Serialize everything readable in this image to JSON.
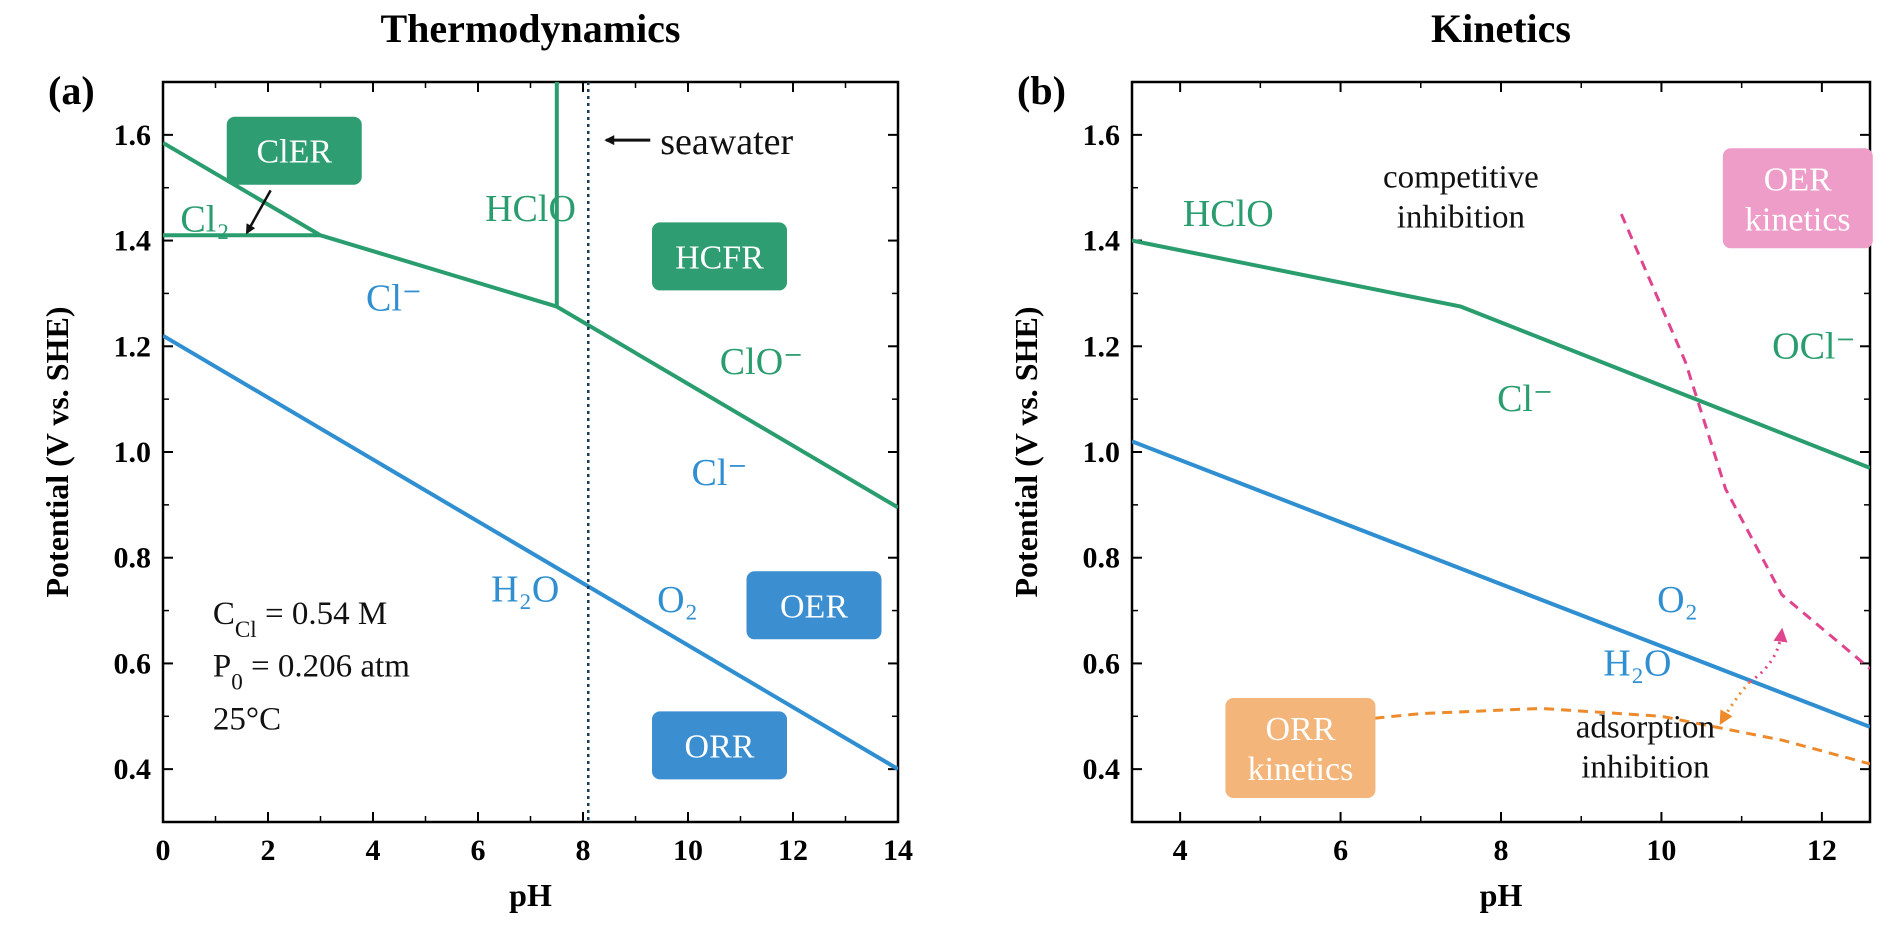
{
  "colors": {
    "green": "#2a9d6e",
    "blue": "#2f8fd1",
    "pink": "#e0448f",
    "orange": "#ec8a2c",
    "box_green": "#2e9e72",
    "box_blue": "#3b8ed0",
    "box_pink": "#ee9cc8",
    "box_orange": "#f4b57a"
  },
  "chart_data": [
    {
      "panel": "(a)",
      "type": "line",
      "title": "Thermodynamics",
      "xlabel": "pH",
      "ylabel": "Potential (V vs. SHE)",
      "xlim": [
        0,
        14
      ],
      "ylim": [
        0.3,
        1.7
      ],
      "xticks": [
        "0",
        "2",
        "4",
        "6",
        "8",
        "10",
        "12",
        "14"
      ],
      "yticks": [
        "0.4",
        "0.6",
        "0.8",
        "1.0",
        "1.2",
        "1.4",
        "1.6"
      ],
      "series": [
        {
          "color": "green",
          "points": [
            [
              0,
              1.585
            ],
            [
              3,
              1.41
            ],
            [
              7.5,
              1.275
            ],
            [
              14,
              0.895
            ]
          ]
        },
        {
          "color": "green",
          "points": [
            [
              0,
              1.41
            ],
            [
              3,
              1.41
            ]
          ]
        },
        {
          "color": "green",
          "points": [
            [
              7.5,
              1.275
            ],
            [
              7.5,
              1.7
            ]
          ]
        },
        {
          "color": "blue",
          "points": [
            [
              0,
              1.22
            ],
            [
              14,
              0.4
            ]
          ]
        }
      ],
      "vline": {
        "x": 8.1,
        "style": "dotted",
        "label": "seawater"
      },
      "region_labels": [
        {
          "text": "HClO",
          "x": 7.0,
          "y": 1.46,
          "color": "green"
        },
        {
          "text": "Cl⁻",
          "x": 4.4,
          "y": 1.29,
          "color": "blue"
        },
        {
          "text": "ClO⁻",
          "x": 11.4,
          "y": 1.17,
          "color": "green"
        },
        {
          "text": "Cl⁻",
          "x": 10.6,
          "y": 0.96,
          "color": "blue"
        },
        {
          "text": "H₂O",
          "x": 6.9,
          "y": 0.74,
          "color": "blue"
        },
        {
          "text": "O₂",
          "x": 9.8,
          "y": 0.72,
          "color": "blue"
        },
        {
          "text": "Cl₂",
          "x": 0.8,
          "y": 1.44,
          "color": "green"
        }
      ],
      "boxes": [
        {
          "text": "ClER",
          "x": 2.5,
          "y": 1.57,
          "color": "box_green"
        },
        {
          "text": "HCFR",
          "x": 10.6,
          "y": 1.37,
          "color": "box_green"
        },
        {
          "text": "OER",
          "x": 12.4,
          "y": 0.71,
          "color": "box_blue"
        },
        {
          "text": "ORR",
          "x": 10.6,
          "y": 0.445,
          "color": "box_blue"
        }
      ],
      "annotations": [
        "C<sub>Cl</sub> = 0.54 M",
        "P<sub>0</sub> = 0.206 atm",
        "25°C"
      ]
    },
    {
      "panel": "(b)",
      "type": "line",
      "title": "Kinetics",
      "xlabel": "pH",
      "ylabel": "Potential (V vs. SHE)",
      "xlim": [
        3.4,
        12.6
      ],
      "ylim": [
        0.3,
        1.7
      ],
      "xticks": [
        "4",
        "6",
        "8",
        "10",
        "12"
      ],
      "yticks": [
        "0.4",
        "0.6",
        "0.8",
        "1.0",
        "1.2",
        "1.4",
        "1.6"
      ],
      "series": [
        {
          "color": "green",
          "points": [
            [
              3.4,
              1.4
            ],
            [
              7.5,
              1.275
            ],
            [
              12.6,
              0.97
            ]
          ]
        },
        {
          "color": "blue",
          "points": [
            [
              3.4,
              1.02
            ],
            [
              12.6,
              0.48
            ]
          ]
        },
        {
          "color": "pink",
          "style": "dashed",
          "points": [
            [
              9.5,
              1.45
            ],
            [
              10.3,
              1.17
            ],
            [
              10.8,
              0.93
            ],
            [
              11.5,
              0.73
            ],
            [
              12.6,
              0.59
            ]
          ]
        },
        {
          "color": "orange",
          "style": "dashed",
          "points": [
            [
              6.0,
              0.49
            ],
            [
              7.0,
              0.505
            ],
            [
              8.5,
              0.515
            ],
            [
              10.0,
              0.5
            ],
            [
              11.5,
              0.455
            ],
            [
              12.6,
              0.41
            ]
          ]
        }
      ],
      "region_labels": [
        {
          "text": "HClO",
          "x": 4.6,
          "y": 1.45,
          "color": "green"
        },
        {
          "text": "OCl⁻",
          "x": 11.9,
          "y": 1.2,
          "color": "green"
        },
        {
          "text": "Cl⁻",
          "x": 8.3,
          "y": 1.1,
          "color": "green"
        },
        {
          "text": "O₂",
          "x": 10.2,
          "y": 0.72,
          "color": "blue"
        },
        {
          "text": "H₂O",
          "x": 9.7,
          "y": 0.6,
          "color": "blue"
        }
      ],
      "boxes": [
        {
          "text": [
            "OER",
            "kinetics"
          ],
          "x": 11.7,
          "y": 1.48,
          "color": "box_pink"
        },
        {
          "text": [
            "ORR",
            "kinetics"
          ],
          "x": 5.5,
          "y": 0.44,
          "color": "box_orange"
        }
      ],
      "annotations": [
        {
          "lines": [
            "competitive",
            "inhibition"
          ],
          "x": 7.5,
          "y": 1.5
        },
        {
          "lines": [
            "adsorption",
            "inhibition"
          ],
          "x": 9.8,
          "y": 0.46
        }
      ]
    }
  ]
}
